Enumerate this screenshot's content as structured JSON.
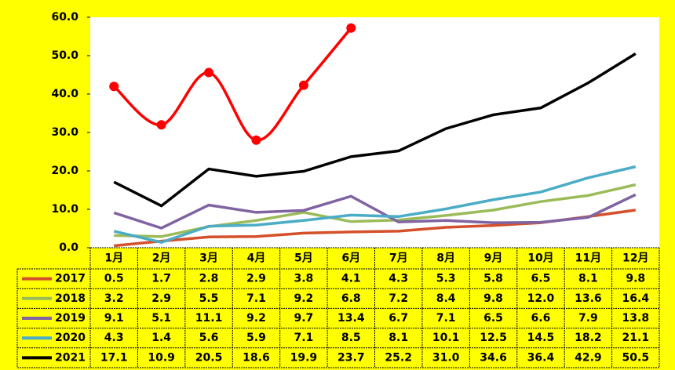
{
  "chart_data": {
    "type": "line",
    "categories": [
      "1月",
      "2月",
      "3月",
      "4月",
      "5月",
      "6月",
      "7月",
      "8月",
      "9月",
      "10月",
      "11月",
      "12月"
    ],
    "ylim": [
      0,
      60
    ],
    "yticks": [
      {
        "value": 0,
        "label": "0.0"
      },
      {
        "value": 10,
        "label": "10.0"
      },
      {
        "value": 20,
        "label": "20.0"
      },
      {
        "value": 30,
        "label": "30.0"
      },
      {
        "value": 40,
        "label": "40.0"
      },
      {
        "value": 50,
        "label": "50.0"
      },
      {
        "value": 60,
        "label": "60.0"
      }
    ],
    "series": [
      {
        "name": "2017",
        "color": "#d4502a",
        "values": [
          0.5,
          1.7,
          2.8,
          2.9,
          3.8,
          4.1,
          4.3,
          5.3,
          5.8,
          6.5,
          8.1,
          9.8
        ],
        "value_labels": [
          "0.5",
          "1.7",
          "2.8",
          "2.9",
          "3.8",
          "4.1",
          "4.3",
          "5.3",
          "5.8",
          "6.5",
          "8.1",
          "9.8"
        ]
      },
      {
        "name": "2018",
        "color": "#9bbb59",
        "values": [
          3.2,
          2.9,
          5.5,
          7.1,
          9.2,
          6.8,
          7.2,
          8.4,
          9.8,
          12.0,
          13.6,
          16.4
        ],
        "value_labels": [
          "3.2",
          "2.9",
          "5.5",
          "7.1",
          "9.2",
          "6.8",
          "7.2",
          "8.4",
          "9.8",
          "12.0",
          "13.6",
          "16.4"
        ]
      },
      {
        "name": "2019",
        "color": "#8064a2",
        "values": [
          9.1,
          5.1,
          11.1,
          9.2,
          9.7,
          13.4,
          6.7,
          7.1,
          6.5,
          6.6,
          7.9,
          13.8
        ],
        "value_labels": [
          "9.1",
          "5.1",
          "11.1",
          "9.2",
          "9.7",
          "13.4",
          "6.7",
          "7.1",
          "6.5",
          "6.6",
          "7.9",
          "13.8"
        ]
      },
      {
        "name": "2020",
        "color": "#4bacc6",
        "values": [
          4.3,
          1.4,
          5.6,
          5.9,
          7.1,
          8.5,
          8.1,
          10.1,
          12.5,
          14.5,
          18.2,
          21.1
        ],
        "value_labels": [
          "4.3",
          "1.4",
          "5.6",
          "5.9",
          "7.1",
          "8.5",
          "8.1",
          "10.1",
          "12.5",
          "14.5",
          "18.2",
          "21.1"
        ]
      },
      {
        "name": "2021",
        "color": "#000000",
        "values": [
          17.1,
          10.9,
          20.5,
          18.6,
          19.9,
          23.7,
          25.2,
          31.0,
          34.6,
          36.4,
          42.9,
          50.5
        ],
        "value_labels": [
          "17.1",
          "10.9",
          "20.5",
          "18.6",
          "19.9",
          "23.7",
          "25.2",
          "31.0",
          "34.6",
          "36.4",
          "42.9",
          "50.5"
        ]
      },
      {
        "color": "#ff0000",
        "smooth": true,
        "markers": true,
        "values": [
          42.0,
          32.0,
          45.6,
          28.0,
          42.3,
          57.2,
          null,
          null,
          null,
          null,
          null,
          null
        ]
      }
    ]
  }
}
